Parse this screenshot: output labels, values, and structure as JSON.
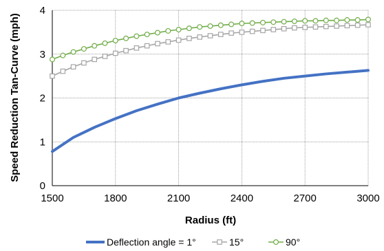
{
  "chart_data": {
    "type": "line",
    "title": "",
    "xlabel": "Radius (ft)",
    "ylabel": "Speed Reduction Tan-Curve (mph)",
    "xlim": [
      1500,
      3000
    ],
    "ylim": [
      0,
      4
    ],
    "x_ticks": [
      1500,
      1800,
      2100,
      2400,
      2700,
      3000
    ],
    "y_ticks": [
      0,
      1,
      2,
      3,
      4
    ],
    "grid": "major gridlines on both axes",
    "legend_position": "bottom",
    "series": [
      {
        "name": "Deflection angle = 1°",
        "color": "#4472c4",
        "marker": "none",
        "x": [
          1500,
          1600,
          1700,
          1800,
          1900,
          2000,
          2100,
          2200,
          2300,
          2400,
          2500,
          2600,
          2700,
          2800,
          2900,
          3000
        ],
        "y": [
          0.78,
          1.1,
          1.33,
          1.53,
          1.71,
          1.86,
          2.0,
          2.11,
          2.21,
          2.3,
          2.38,
          2.45,
          2.5,
          2.55,
          2.59,
          2.63
        ]
      },
      {
        "name": "15°",
        "color": "#a5a5a5",
        "marker": "square",
        "x": [
          1500,
          1550,
          1600,
          1650,
          1700,
          1750,
          1800,
          1850,
          1900,
          1950,
          2000,
          2050,
          2100,
          2150,
          2200,
          2250,
          2300,
          2350,
          2400,
          2450,
          2500,
          2550,
          2600,
          2650,
          2700,
          2750,
          2800,
          2850,
          2900,
          2950,
          3000
        ],
        "y": [
          2.5,
          2.61,
          2.71,
          2.8,
          2.88,
          2.95,
          3.02,
          3.08,
          3.14,
          3.19,
          3.24,
          3.28,
          3.32,
          3.36,
          3.39,
          3.42,
          3.45,
          3.48,
          3.5,
          3.52,
          3.54,
          3.56,
          3.58,
          3.6,
          3.61,
          3.62,
          3.63,
          3.64,
          3.65,
          3.66,
          3.67
        ]
      },
      {
        "name": "90°",
        "color": "#70ad47",
        "marker": "circle",
        "x": [
          1500,
          1550,
          1600,
          1650,
          1700,
          1750,
          1800,
          1850,
          1900,
          1950,
          2000,
          2050,
          2100,
          2150,
          2200,
          2250,
          2300,
          2350,
          2400,
          2450,
          2500,
          2550,
          2600,
          2650,
          2700,
          2750,
          2800,
          2850,
          2900,
          2950,
          3000
        ],
        "y": [
          2.88,
          2.97,
          3.05,
          3.12,
          3.19,
          3.25,
          3.31,
          3.36,
          3.41,
          3.45,
          3.49,
          3.53,
          3.56,
          3.59,
          3.62,
          3.64,
          3.66,
          3.68,
          3.7,
          3.71,
          3.72,
          3.73,
          3.74,
          3.75,
          3.76,
          3.76,
          3.77,
          3.77,
          3.78,
          3.78,
          3.79
        ]
      }
    ]
  }
}
